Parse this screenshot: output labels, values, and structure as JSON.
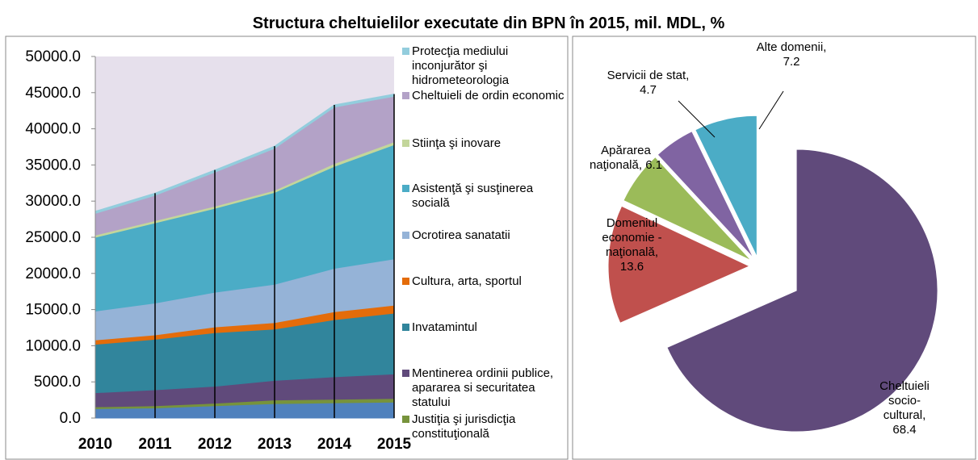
{
  "title": "Structura cheltuielilor executate din BPN în 2015, mil. MDL, %",
  "chart_data": [
    {
      "type": "stacked_area",
      "categories": [
        "2010",
        "2011",
        "2012",
        "2013",
        "2014",
        "2015"
      ],
      "ylim": [
        0,
        50000
      ],
      "yticks": [
        {
          "value": 0,
          "label": "0.0"
        },
        {
          "value": 5000,
          "label": "5000.0"
        },
        {
          "value": 10000,
          "label": "10000.0"
        },
        {
          "value": 15000,
          "label": "15000.0"
        },
        {
          "value": 20000,
          "label": "20000.0"
        },
        {
          "value": 25000,
          "label": "25000.0"
        },
        {
          "value": 30000,
          "label": "30000.0"
        },
        {
          "value": 35000,
          "label": "35000.0"
        },
        {
          "value": 40000,
          "label": "40000.0"
        },
        {
          "value": 45000,
          "label": "45000.0"
        },
        {
          "value": 50000,
          "label": "50000.0"
        }
      ],
      "drop_lines": true,
      "background": "#e6e0ec",
      "series": [
        {
          "color": "#4f81bd",
          "values": [
            1300,
            1400,
            1700,
            2000,
            2100,
            2200
          ]
        },
        {
          "name": "Justiţia şi jurisdicţia constituţională",
          "color": "#77933c",
          "values": [
            250,
            300,
            350,
            500,
            500,
            500
          ]
        },
        {
          "name": "Mentinerea ordinii publice, apararea si securitatea statului",
          "color": "#604a7b",
          "values": [
            1950,
            2200,
            2350,
            2700,
            3100,
            3400
          ]
        },
        {
          "name": "Invatamintul",
          "color": "#31859c",
          "values": [
            6700,
            7000,
            7400,
            7100,
            7900,
            8400
          ]
        },
        {
          "name": "Cultura, arta, sportul",
          "color": "#e46c0a",
          "values": [
            600,
            600,
            800,
            900,
            1100,
            1100
          ]
        },
        {
          "name": "Ocrotirea sanatatii",
          "color": "#95b3d7",
          "values": [
            4000,
            4400,
            4800,
            5300,
            6000,
            6400
          ]
        },
        {
          "name": "Asistenţă şi susţinerea socială",
          "color": "#4bacc6",
          "values": [
            10200,
            11100,
            11600,
            12700,
            14100,
            15800
          ]
        },
        {
          "name": "Stiinţa şi inovare",
          "color": "#c3d69b",
          "values": [
            300,
            300,
            300,
            300,
            400,
            400
          ]
        },
        {
          "name": "Cheltuieli de ordin economic",
          "color": "#b3a2c7",
          "values": [
            3000,
            3500,
            4700,
            5800,
            7800,
            6300
          ]
        },
        {
          "name": "Protecţia mediului inconjurător şi hidrometeorologia",
          "color": "#93cddd",
          "values": [
            300,
            300,
            300,
            300,
            300,
            300
          ]
        }
      ]
    },
    {
      "type": "pie",
      "categories": [
        "Cheltuieli socio-cultural,",
        "Domeniul economie - naţională,",
        "Apărarea naţională,",
        "Servicii de stat,",
        "Alte domenii,"
      ],
      "values": [
        68.4,
        13.6,
        6.1,
        4.7,
        7.2
      ],
      "colors": [
        "#604a7b",
        "#c0504d",
        "#9bbb59",
        "#8064a2",
        "#4bacc6"
      ]
    }
  ]
}
